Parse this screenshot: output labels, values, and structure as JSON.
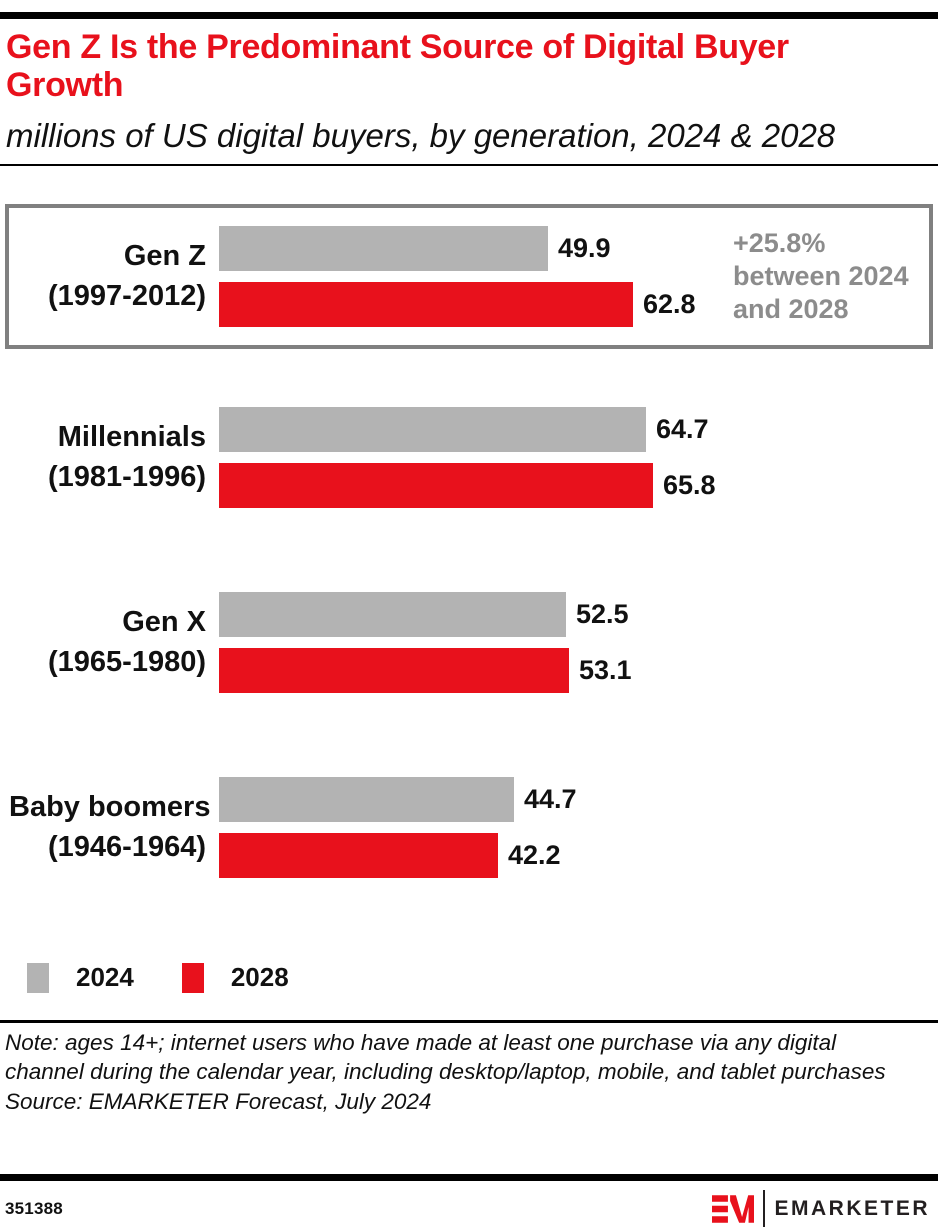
{
  "colors": {
    "accent_red": "#e8111c",
    "bar_gray": "#b3b3b3",
    "annotation_gray": "#8c8c8c",
    "highlight_border_gray": "#808080"
  },
  "header": {
    "title": "Gen Z Is the Predominant Source of Digital Buyer Growth",
    "subtitle": "millions of US digital buyers, by generation, 2024 & 2028"
  },
  "chart_data": {
    "type": "bar",
    "orientation": "horizontal",
    "title": "Gen Z Is the Predominant Source of Digital Buyer Growth",
    "subtitle": "millions of US digital buyers, by generation, 2024 & 2028",
    "unit": "millions of US digital buyers",
    "categories": [
      "Gen Z",
      "Millennials",
      "Gen X",
      "Baby boomers"
    ],
    "category_sublabels": [
      "(1997-2012)",
      "(1981-1996)",
      "(1965-1980)",
      "(1946-1964)"
    ],
    "series": [
      {
        "name": "2024",
        "color": "#b3b3b3",
        "values": [
          49.9,
          64.7,
          52.5,
          44.7
        ]
      },
      {
        "name": "2028",
        "color": "#e8111c",
        "values": [
          62.8,
          65.8,
          53.1,
          42.2
        ]
      }
    ],
    "xlim": [
      0,
      66
    ],
    "grid": false,
    "value_labels": "end-of-bar",
    "highlighted_category": "Gen Z",
    "annotation": {
      "target": "Gen Z",
      "text": "+25.8% between 2024 and 2028",
      "lines": [
        "+25.8%",
        "between 2024",
        "and 2028"
      ]
    }
  },
  "legend": {
    "position": "bottom-left",
    "items": [
      {
        "label": "2024",
        "color": "#b3b3b3"
      },
      {
        "label": "2028",
        "color": "#e8111c"
      }
    ]
  },
  "notes": {
    "note": "Note: ages 14+; internet users who have made at least one purchase via any digital channel during the calendar year, including desktop/laptop, mobile, and tablet purchases",
    "source": "Source: EMARKETER Forecast, July 2024"
  },
  "footer": {
    "chart_id": "351388",
    "brand": "EMARKETER"
  }
}
